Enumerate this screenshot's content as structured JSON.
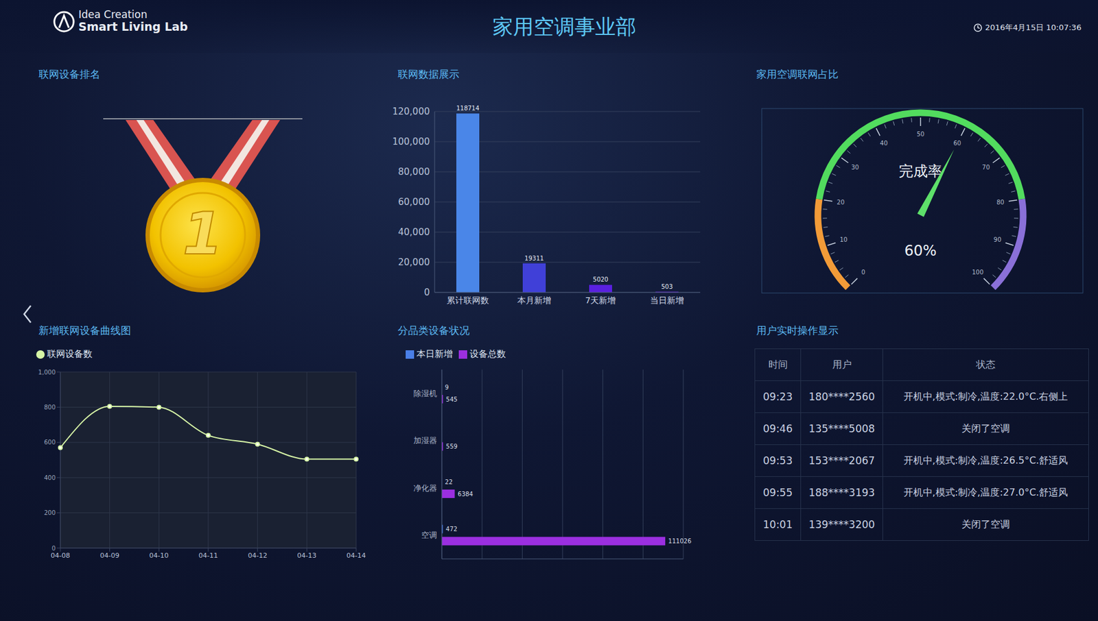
{
  "header": {
    "logo": [
      "Idea Creation",
      "Smart Living Lab"
    ],
    "title": "家用空调事业部",
    "timestamp": "2016年4月15日 10:07:36"
  },
  "ranking": {
    "title": "联网设备排名",
    "rank": 1
  },
  "chart_data": [
    {
      "type": "bar",
      "title": "联网数据展示",
      "categories": [
        "累计联网数",
        "本月新增",
        "7天新增",
        "当日新增"
      ],
      "values": [
        118714,
        19311,
        5020,
        503
      ],
      "colors": [
        "#4a86e8",
        "#4040d8",
        "#5a20e0",
        "#6a28d8"
      ],
      "ylim": [
        0,
        120000
      ],
      "yticks": [
        0,
        {
          "value": 20000,
          "label": "20,000"
        },
        {
          "value": 40000,
          "label": "40,000"
        },
        {
          "value": 60000,
          "label": "60,000"
        },
        {
          "value": 80000,
          "label": "80,000"
        },
        {
          "value": 100000,
          "label": "100,000"
        },
        {
          "value": 120000,
          "label": "120,000"
        }
      ],
      "grid": true,
      "data_labels": true
    },
    {
      "type": "gauge",
      "title": "家用空调联网占比",
      "label": "完成率",
      "values": [
        60
      ],
      "value_labels": [
        "60%"
      ],
      "ylim": [
        0,
        100
      ],
      "yticks": [
        0,
        10,
        20,
        30,
        40,
        50,
        60,
        70,
        80,
        90,
        100
      ],
      "ranges": [
        {
          "from": 0,
          "to": 20,
          "color": "#f29b38"
        },
        {
          "from": 20,
          "to": 80,
          "color": "#52dc5e"
        },
        {
          "from": 80,
          "to": 100,
          "color": "#8a70d8"
        }
      ],
      "color": "#5ee06a"
    },
    {
      "type": "line",
      "title": "新增联网设备曲线图",
      "categories": [
        "04-08",
        "04-09",
        "04-10",
        "04-11",
        "04-12",
        "04-13",
        "04-14"
      ],
      "series": [
        {
          "name": "联网设备数",
          "color": "#d6f5a6",
          "values": [
            570,
            805,
            800,
            640,
            590,
            505,
            505
          ]
        }
      ],
      "ylim": [
        0,
        1000
      ],
      "yticks": [
        0,
        200,
        400,
        600,
        800,
        {
          "value": 1000,
          "label": "1,000"
        }
      ],
      "grid": true,
      "legend": "top-left",
      "marker": "circle"
    },
    {
      "type": "bar",
      "orientation": "horizontal",
      "title": "分品类设备状况",
      "categories": [
        "除湿机",
        "加湿器",
        "净化器",
        "空调"
      ],
      "series": [
        {
          "name": "本日新增",
          "color": "#4a7fe8",
          "values": [
            9,
            0,
            22,
            472
          ]
        },
        {
          "name": "设备总数",
          "color": "#9b2fe0",
          "values": [
            545,
            559,
            6384,
            111026
          ]
        }
      ],
      "xlim": [
        0,
        120000
      ],
      "xticks": [
        0,
        20000,
        40000,
        60000,
        80000,
        100000,
        120000
      ],
      "tick_labels": false,
      "grid": true,
      "legend": "top-left",
      "data_labels": true
    }
  ],
  "table": {
    "title": "用户实时操作显示",
    "columns": [
      "时间",
      "用户",
      "状态"
    ],
    "rows": [
      [
        "09:23",
        "180****2560",
        "开机中,模式:制冷,温度:22.0°C.右侧上"
      ],
      [
        "09:46",
        "135****5008",
        "关闭了空调"
      ],
      [
        "09:53",
        "153****2067",
        "开机中,模式:制冷,温度:26.5°C.舒适风"
      ],
      [
        "09:55",
        "188****3193",
        "开机中,模式:制冷,温度:27.0°C.舒适风"
      ],
      [
        "10:01",
        "139****3200",
        "关闭了空调"
      ]
    ]
  }
}
